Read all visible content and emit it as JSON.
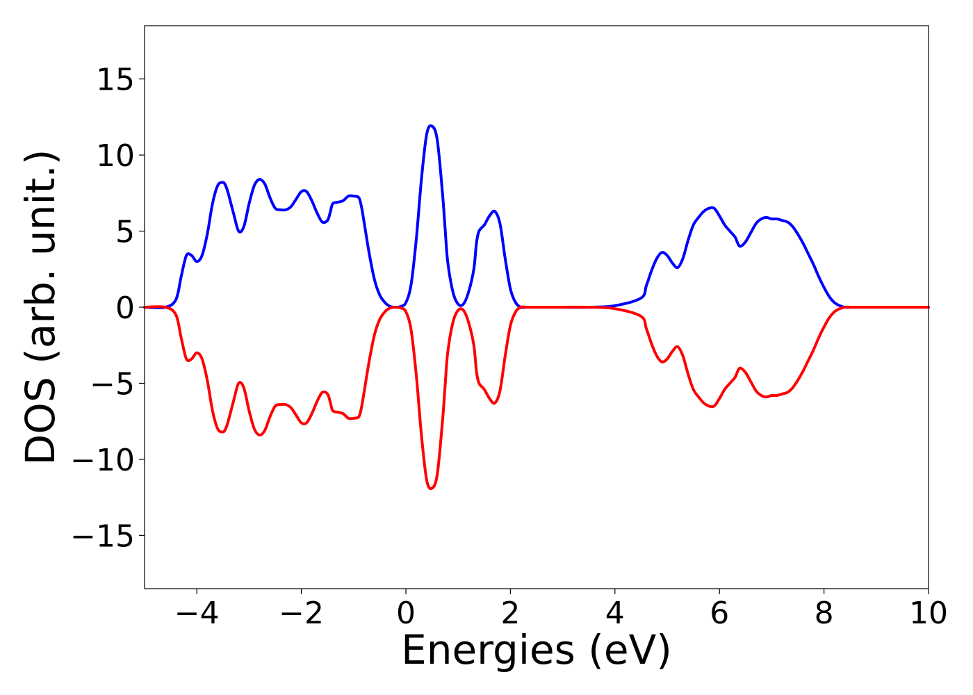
{
  "chart_data": {
    "type": "line",
    "title": "",
    "xlabel": "Energies (eV)",
    "ylabel": "DOS (arb. unit.)",
    "xlim": [
      -5,
      10
    ],
    "ylim": [
      -18.5,
      18.5
    ],
    "grid": false,
    "legend": "none",
    "x_ticks": [
      {
        "value": -4,
        "label": "−4"
      },
      {
        "value": -2,
        "label": "−2"
      },
      {
        "value": 0,
        "label": "0"
      },
      {
        "value": 2,
        "label": "2"
      },
      {
        "value": 4,
        "label": "4"
      },
      {
        "value": 6,
        "label": "6"
      },
      {
        "value": 8,
        "label": "8"
      },
      {
        "value": 10,
        "label": "10"
      }
    ],
    "y_ticks": [
      {
        "value": 15,
        "label": "15"
      },
      {
        "value": 10,
        "label": "10"
      },
      {
        "value": 5,
        "label": "5"
      },
      {
        "value": 0,
        "label": "0"
      },
      {
        "value": -5,
        "label": "−5"
      },
      {
        "value": -10,
        "label": "−10"
      },
      {
        "value": -15,
        "label": "−15"
      }
    ],
    "x": [
      -5.0,
      -4.6,
      -4.4,
      -4.3,
      -4.2,
      -4.1,
      -4.0,
      -3.9,
      -3.8,
      -3.7,
      -3.6,
      -3.5,
      -3.45,
      -3.4,
      -3.3,
      -3.2,
      -3.1,
      -3.0,
      -2.9,
      -2.8,
      -2.7,
      -2.6,
      -2.5,
      -2.4,
      -2.3,
      -2.2,
      -2.1,
      -2.0,
      -1.9,
      -1.8,
      -1.7,
      -1.6,
      -1.5,
      -1.45,
      -1.4,
      -1.3,
      -1.2,
      -1.1,
      -1.0,
      -0.9,
      -0.85,
      -0.8,
      -0.7,
      -0.6,
      -0.5,
      -0.4,
      -0.3,
      -0.2,
      -0.1,
      0.0,
      0.1,
      0.2,
      0.3,
      0.4,
      0.5,
      0.6,
      0.7,
      0.75,
      0.8,
      0.9,
      1.0,
      1.1,
      1.2,
      1.3,
      1.35,
      1.4,
      1.5,
      1.6,
      1.7,
      1.8,
      1.9,
      2.0,
      2.1,
      2.2,
      2.3,
      2.4,
      2.5,
      2.6,
      2.7,
      3.0,
      3.5,
      4.0,
      4.5,
      4.6,
      4.7,
      4.8,
      4.9,
      5.0,
      5.1,
      5.2,
      5.3,
      5.4,
      5.5,
      5.6,
      5.7,
      5.8,
      5.9,
      6.0,
      6.1,
      6.2,
      6.3,
      6.35,
      6.4,
      6.5,
      6.6,
      6.7,
      6.8,
      6.9,
      7.0,
      7.1,
      7.2,
      7.3,
      7.4,
      7.5,
      7.6,
      7.7,
      7.8,
      7.9,
      8.0,
      8.1,
      8.2,
      8.3,
      8.4,
      8.5,
      8.6,
      8.7,
      8.8,
      8.9,
      9.0,
      9.5,
      10.0
    ],
    "series": [
      {
        "color": "#0000ff",
        "values": [
          0.0,
          0.0,
          0.5,
          2.0,
          3.4,
          3.4,
          3.0,
          3.4,
          4.8,
          6.8,
          8.0,
          8.2,
          8.0,
          7.5,
          6.2,
          5.0,
          5.3,
          6.8,
          8.0,
          8.4,
          8.1,
          7.2,
          6.5,
          6.4,
          6.4,
          6.6,
          7.1,
          7.6,
          7.6,
          7.0,
          6.2,
          5.6,
          5.7,
          6.2,
          6.8,
          6.9,
          7.0,
          7.3,
          7.3,
          7.2,
          6.6,
          5.6,
          3.5,
          1.8,
          0.8,
          0.3,
          0.05,
          0.0,
          0.05,
          0.3,
          1.5,
          4.5,
          8.5,
          11.4,
          11.9,
          11.0,
          7.5,
          5.2,
          3.0,
          1.0,
          0.2,
          0.2,
          1.0,
          2.5,
          4.2,
          5.0,
          5.4,
          6.0,
          6.3,
          5.5,
          3.2,
          1.2,
          0.3,
          0.0,
          0.0,
          0.0,
          0.0,
          0.0,
          0.0,
          0.0,
          0.0,
          0.1,
          0.6,
          1.4,
          2.4,
          3.2,
          3.6,
          3.4,
          2.9,
          2.6,
          3.2,
          4.4,
          5.4,
          5.9,
          6.3,
          6.5,
          6.5,
          6.0,
          5.4,
          5.0,
          4.6,
          4.2,
          4.0,
          4.3,
          4.9,
          5.5,
          5.8,
          5.9,
          5.8,
          5.8,
          5.7,
          5.6,
          5.3,
          4.8,
          4.2,
          3.5,
          2.8,
          2.0,
          1.3,
          0.7,
          0.3,
          0.1,
          0.0,
          0.0,
          0.0,
          0.0,
          0.0,
          0.0,
          0.0,
          0.0,
          0.0
        ]
      },
      {
        "color": "#ff0000",
        "values": [
          0.0,
          0.0,
          -0.5,
          -2.0,
          -3.4,
          -3.4,
          -3.0,
          -3.4,
          -4.8,
          -6.8,
          -8.0,
          -8.2,
          -8.0,
          -7.5,
          -6.2,
          -5.0,
          -5.3,
          -6.8,
          -8.0,
          -8.4,
          -8.1,
          -7.2,
          -6.5,
          -6.4,
          -6.4,
          -6.6,
          -7.1,
          -7.6,
          -7.6,
          -7.0,
          -6.2,
          -5.6,
          -5.7,
          -6.2,
          -6.8,
          -6.9,
          -7.0,
          -7.3,
          -7.3,
          -7.2,
          -6.6,
          -5.6,
          -3.5,
          -1.8,
          -0.8,
          -0.3,
          -0.05,
          0.0,
          -0.05,
          -0.3,
          -1.5,
          -4.5,
          -8.5,
          -11.4,
          -11.9,
          -11.0,
          -7.5,
          -5.2,
          -3.0,
          -1.0,
          -0.2,
          -0.2,
          -1.0,
          -2.5,
          -4.2,
          -5.0,
          -5.4,
          -6.0,
          -6.3,
          -5.5,
          -3.2,
          -1.2,
          -0.3,
          0.0,
          0.0,
          0.0,
          0.0,
          0.0,
          0.0,
          0.0,
          0.0,
          -0.1,
          -0.6,
          -1.4,
          -2.4,
          -3.2,
          -3.6,
          -3.4,
          -2.9,
          -2.6,
          -3.2,
          -4.4,
          -5.4,
          -5.9,
          -6.3,
          -6.5,
          -6.5,
          -6.0,
          -5.4,
          -5.0,
          -4.6,
          -4.2,
          -4.0,
          -4.3,
          -4.9,
          -5.5,
          -5.8,
          -5.9,
          -5.8,
          -5.8,
          -5.7,
          -5.6,
          -5.3,
          -4.8,
          -4.2,
          -3.5,
          -2.8,
          -2.0,
          -1.3,
          -0.7,
          -0.3,
          -0.1,
          0.0,
          0.0,
          0.0,
          0.0,
          0.0,
          0.0,
          0.0,
          0.0,
          0.0
        ]
      }
    ]
  }
}
